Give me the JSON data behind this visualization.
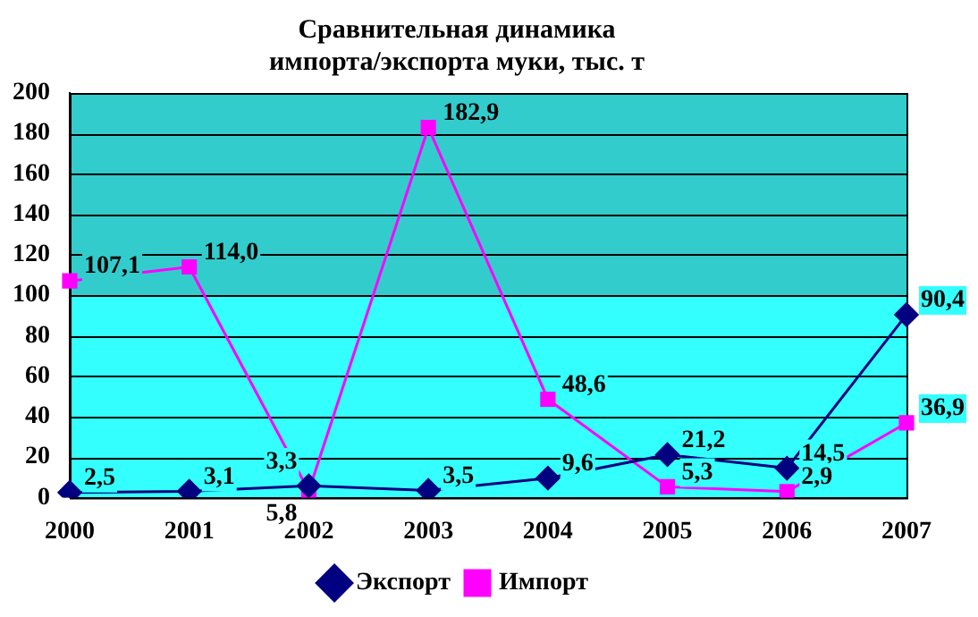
{
  "chart_data": {
    "type": "line",
    "title": "Сравнительная динамика\nимпорта/экспорта муки, тыс. т",
    "categories": [
      "2000",
      "2001",
      "2002",
      "2003",
      "2004",
      "2005",
      "2006",
      "2007"
    ],
    "series": [
      {
        "name": "Экспорт",
        "color": "#000080",
        "marker": "diamond",
        "values": [
          2.5,
          3.1,
          5.8,
          3.5,
          9.6,
          21.2,
          14.5,
          90.4
        ],
        "value_labels": [
          "2,5",
          "3,1",
          "5,8",
          "3,5",
          "9,6",
          "21,2",
          "14,5",
          "90,4"
        ]
      },
      {
        "name": "Импорт",
        "color": "#ff00ff",
        "marker": "square",
        "values": [
          107.1,
          114.0,
          3.3,
          182.9,
          48.6,
          5.3,
          2.9,
          36.9
        ],
        "value_labels": [
          "107,1",
          "114,0",
          "3,3",
          "182,9",
          "48,6",
          "5,3",
          "2,9",
          "36,9"
        ]
      }
    ],
    "ylim": [
      0,
      200
    ],
    "yticks": [
      0,
      20,
      40,
      60,
      80,
      100,
      120,
      140,
      160,
      180,
      200
    ],
    "grid": "y",
    "legend": "bottom",
    "bands": [
      {
        "axis": "y",
        "from": 100,
        "to": 200,
        "color": "#33cccc"
      },
      {
        "axis": "y",
        "from": 0,
        "to": 100,
        "color": "#33ffff"
      }
    ]
  }
}
